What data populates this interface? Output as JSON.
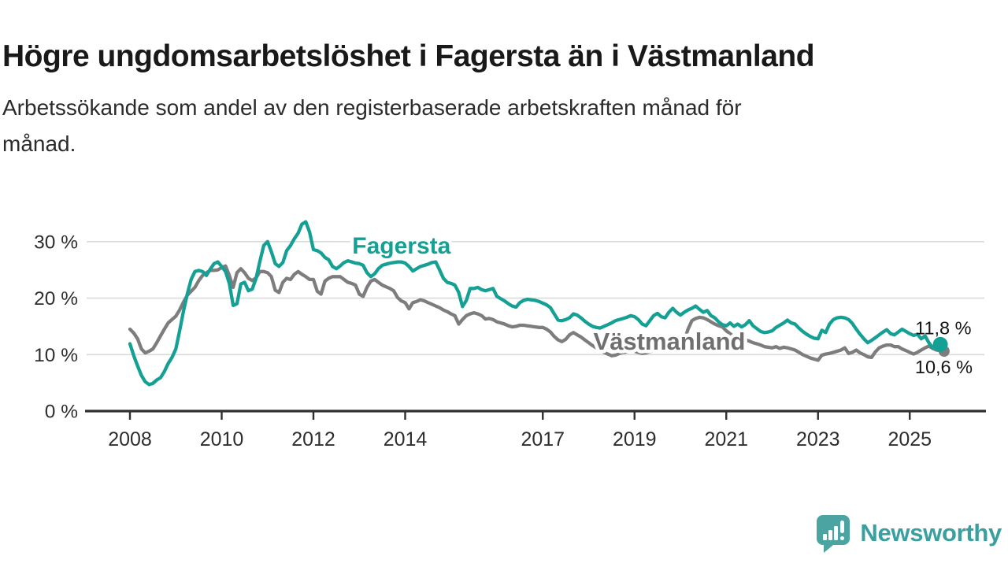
{
  "header": {
    "title": "Högre ungdomsarbetslöshet i Fagersta än i Västmanland",
    "subtitle_lines": [
      "Arbetssökande som andel av den registerbaserade arbetskraften månad för",
      "månad."
    ]
  },
  "footer": {
    "brand": "Newsworthy"
  },
  "colors": {
    "fagersta_line": "#14a094",
    "vastmanland_line": "#7d7d7d",
    "vastmanland_label": "#6f6f6f",
    "axis": "#2f2f2f",
    "gridline": "#dadada",
    "tick_text": "#2e2e2e",
    "end_label_text": "#141414",
    "logo_teal": "#4ba3a2",
    "background": "#ffffff"
  },
  "chart_data": {
    "type": "line",
    "title": "Högre ungdomsarbetslöshet i Fagersta än i Västmanland",
    "subtitle": "Arbetssökande som andel av den registerbaserade arbetskraften månad för månad.",
    "unit": "%",
    "grid": true,
    "x_axis": {
      "tick_years": [
        2008,
        2010,
        2012,
        2014,
        2017,
        2019,
        2021,
        2023,
        2025
      ],
      "tick_labels": [
        "2008",
        "2010",
        "2012",
        "2014",
        "2017",
        "2019",
        "2021",
        "2023",
        "2025"
      ]
    },
    "y_axis": {
      "tick_values": [
        30,
        20,
        10,
        0
      ],
      "tick_labels": [
        "30 %",
        "20 %",
        "10 %",
        "0 %"
      ],
      "range": [
        0,
        35
      ]
    },
    "series": [
      {
        "key": "fagersta",
        "name": "Fagersta",
        "color": "#14a094",
        "label_color": "#14a094",
        "start_year": 2008,
        "start_month": 1,
        "frequency": "monthly",
        "end_label": "11,8 %",
        "end_value": 11.8,
        "label_anchor": {
          "year": 2013.92,
          "value": 27.9
        },
        "values": [
          11.9,
          9.8,
          8.0,
          6.3,
          5.2,
          4.7,
          4.9,
          5.5,
          5.9,
          7.0,
          8.4,
          9.5,
          11.0,
          14.2,
          17.7,
          20.7,
          23.3,
          24.7,
          24.9,
          24.7,
          24.0,
          25.1,
          26.1,
          26.4,
          25.6,
          24.7,
          22.6,
          18.7,
          19.0,
          22.5,
          22.8,
          21.3,
          21.6,
          23.5,
          26.5,
          29.3,
          30.0,
          28.2,
          26.1,
          25.6,
          26.3,
          28.4,
          29.3,
          30.5,
          31.5,
          33.1,
          33.5,
          31.7,
          28.6,
          28.4,
          28.0,
          27.2,
          26.8,
          25.6,
          25.2,
          25.7,
          26.3,
          26.6,
          26.4,
          26.2,
          26.1,
          25.8,
          24.5,
          23.8,
          24.3,
          25.2,
          25.8,
          26.0,
          26.2,
          26.3,
          26.4,
          26.4,
          26.2,
          25.6,
          24.8,
          25.2,
          25.6,
          25.8,
          26.0,
          26.3,
          26.4,
          25.0,
          23.5,
          22.8,
          22.6,
          22.3,
          21.0,
          18.5,
          19.6,
          21.7,
          21.7,
          21.9,
          21.5,
          21.3,
          21.5,
          21.7,
          20.3,
          19.9,
          19.5,
          19.0,
          18.6,
          18.4,
          19.2,
          19.6,
          19.8,
          19.7,
          19.6,
          19.4,
          19.1,
          18.8,
          18.3,
          17.2,
          16.1,
          16.0,
          16.2,
          16.5,
          17.2,
          17.0,
          16.5,
          15.9,
          15.4,
          15.0,
          14.8,
          14.7,
          15.0,
          15.3,
          15.6,
          16.0,
          16.2,
          16.4,
          16.6,
          16.9,
          16.7,
          16.2,
          15.4,
          15.1,
          16.0,
          16.9,
          17.3,
          16.7,
          16.5,
          17.5,
          18.2,
          17.5,
          17.0,
          17.5,
          17.9,
          18.2,
          18.6,
          18.0,
          17.5,
          17.8,
          16.9,
          16.5,
          15.8,
          15.3,
          15.1,
          15.6,
          15.0,
          15.4,
          14.9,
          15.3,
          16.0,
          15.1,
          14.6,
          14.1,
          13.9,
          14.0,
          14.2,
          14.8,
          15.2,
          15.6,
          16.1,
          15.6,
          15.4,
          14.7,
          14.1,
          13.6,
          13.2,
          12.9,
          12.8,
          14.3,
          13.9,
          15.4,
          16.2,
          16.5,
          16.6,
          16.5,
          16.2,
          15.5,
          14.5,
          13.6,
          12.8,
          12.1,
          12.5,
          13.0,
          13.5,
          14.0,
          14.4,
          13.7,
          13.5,
          14.0,
          14.5,
          14.1,
          13.7,
          13.4,
          13.6,
          12.8,
          13.3,
          12.1,
          11.2,
          11.9,
          11.8
        ]
      },
      {
        "key": "vastmanland",
        "name": "Västmanland",
        "color": "#7d7d7d",
        "label_color": "#6f6f6f",
        "start_year": 2008,
        "start_month": 1,
        "frequency": "monthly",
        "end_label": "10,6 %",
        "end_value": 10.6,
        "label_anchor": {
          "year": 2019.76,
          "value": 10.9
        },
        "values": [
          14.5,
          13.8,
          12.8,
          11.0,
          10.3,
          10.6,
          11.0,
          12.1,
          13.3,
          14.5,
          15.6,
          16.2,
          16.8,
          17.9,
          19.3,
          20.5,
          21.2,
          21.9,
          23.1,
          24.0,
          24.5,
          24.9,
          24.9,
          25.0,
          25.4,
          25.7,
          24.0,
          21.9,
          24.5,
          25.2,
          24.5,
          23.5,
          23.1,
          23.6,
          24.7,
          24.7,
          24.5,
          23.8,
          21.4,
          21.0,
          22.8,
          23.5,
          23.3,
          24.2,
          24.7,
          24.2,
          23.8,
          23.3,
          23.3,
          21.2,
          20.7,
          23.0,
          23.5,
          23.8,
          23.8,
          23.8,
          23.3,
          22.8,
          22.6,
          22.3,
          20.7,
          20.3,
          21.9,
          23.0,
          23.3,
          22.8,
          22.3,
          22.0,
          21.7,
          21.3,
          20.1,
          19.5,
          19.2,
          18.1,
          19.2,
          19.4,
          19.7,
          19.5,
          19.2,
          18.9,
          18.6,
          18.3,
          17.9,
          17.6,
          17.2,
          16.9,
          15.4,
          16.2,
          16.9,
          17.2,
          17.4,
          17.2,
          16.9,
          16.3,
          16.4,
          16.2,
          15.8,
          15.6,
          15.4,
          15.1,
          14.9,
          15.0,
          15.2,
          15.2,
          15.1,
          15.0,
          14.9,
          14.8,
          14.8,
          14.5,
          14.0,
          13.2,
          12.6,
          12.3,
          12.7,
          13.5,
          13.9,
          13.5,
          13.1,
          12.6,
          12.1,
          11.6,
          11.2,
          10.8,
          10.4,
          10.1,
          9.8,
          9.9,
          10.2,
          10.4,
          10.5,
          10.6,
          10.6,
          10.4,
          10.2,
          10.3,
          10.5,
          10.7,
          10.8,
          10.9,
          11.0,
          11.1,
          11.2,
          11.4,
          11.8,
          12.5,
          14.5,
          16.0,
          16.4,
          16.6,
          16.5,
          16.2,
          15.8,
          15.4,
          15.1,
          14.9,
          14.2,
          13.7,
          13.1,
          12.8,
          13.0,
          12.6,
          12.4,
          12.1,
          11.9,
          11.7,
          11.4,
          11.3,
          11.2,
          11.4,
          11.1,
          11.3,
          11.2,
          11.0,
          10.8,
          10.4,
          10.0,
          9.7,
          9.4,
          9.2,
          9.0,
          9.9,
          10.1,
          10.2,
          10.4,
          10.6,
          10.8,
          11.2,
          10.2,
          10.4,
          10.8,
          10.3,
          10.0,
          9.6,
          9.5,
          10.5,
          11.2,
          11.5,
          11.7,
          11.7,
          11.4,
          11.4,
          11.0,
          10.7,
          10.4,
          10.1,
          10.4,
          10.8,
          11.2,
          11.5,
          11.1,
          10.8,
          10.7,
          10.6
        ]
      }
    ],
    "layout_hints": {
      "legend": "inline-labels",
      "gridlines": "horizontal-only",
      "end_markers": "dot-with-value-label"
    }
  }
}
